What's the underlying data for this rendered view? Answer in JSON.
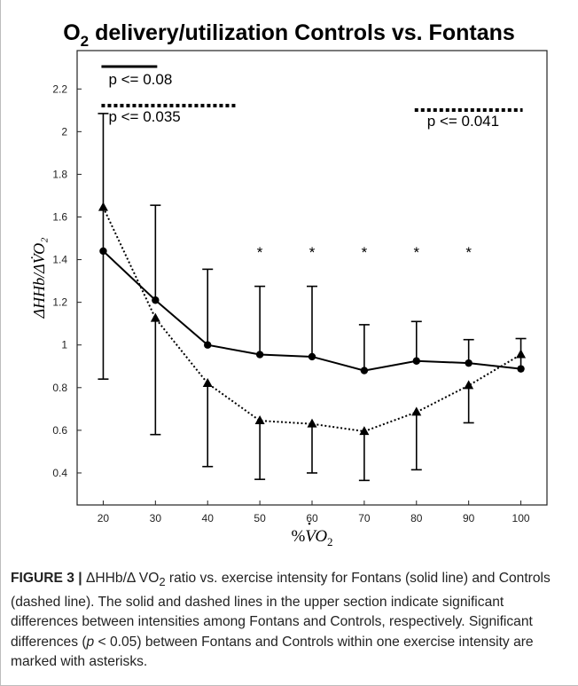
{
  "chart_data": {
    "type": "line",
    "title": {
      "prefix": "O",
      "sub": "2",
      "rest": " delivery/utilization Controls vs. Fontans"
    },
    "xlabel": {
      "prefix": "%",
      "main": "V",
      "sub": "O",
      "subsub": "2"
    },
    "ylabel": "ΔHHb/ΔV̇O₂",
    "x": [
      20,
      30,
      40,
      50,
      60,
      70,
      80,
      90,
      100
    ],
    "xlim": [
      15,
      105
    ],
    "ylim": [
      0.25,
      2.38
    ],
    "xticks": [
      "20",
      "30",
      "40",
      "50",
      "60",
      "70",
      "80",
      "90",
      "100"
    ],
    "yticks": [
      "0.4",
      "0.6",
      "0.8",
      "1",
      "1.2",
      "1.4",
      "1.6",
      "1.8",
      "2",
      "2.2"
    ],
    "series": [
      {
        "line": "solid",
        "marker": "circle",
        "values": [
          1.44,
          1.21,
          1.0,
          0.955,
          0.945,
          0.88,
          0.925,
          0.915,
          0.888
        ],
        "upper_error": [
          2.085,
          1.655,
          1.355,
          1.275,
          1.275,
          1.095,
          1.11,
          1.025,
          1.03
        ],
        "lower_error": [
          0.84,
          null,
          null,
          null,
          null,
          null,
          null,
          null,
          null
        ]
      },
      {
        "line": "dotted",
        "marker": "triangle",
        "values": [
          1.645,
          1.125,
          0.82,
          0.645,
          0.63,
          0.595,
          0.685,
          0.81,
          0.955
        ],
        "upper_error": [
          null,
          null,
          null,
          null,
          null,
          null,
          null,
          null,
          null
        ],
        "lower_error": [
          null,
          0.58,
          0.43,
          0.37,
          0.4,
          0.365,
          0.415,
          0.635,
          null
        ]
      }
    ],
    "significance_markers": {
      "symbol": "*",
      "x": [
        50,
        60,
        70,
        80,
        90
      ]
    },
    "annotations": [
      {
        "text": "p <= 0.08",
        "line": "solid",
        "x_range": [
          20,
          30
        ]
      },
      {
        "text": "p <= 0.035",
        "line": "dotted",
        "x_range": [
          20,
          45
        ]
      },
      {
        "text": "p <= 0.041",
        "line": "dotted",
        "x_range": [
          80,
          100
        ]
      }
    ]
  },
  "caption": {
    "label": "FIGURE 3 |",
    "text_1": " ΔHHb/Δ VO",
    "sub_1": "2",
    "text_2": " ratio vs. exercise intensity for Fontans (solid line) and Controls (dashed line). The solid and dashed lines in the upper section indicate significant differences between intensities among Fontans and Controls, respectively. Significant differences (",
    "italic": "p",
    "text_3": " < 0.05) between Fontans and Controls within one exercise intensity are marked with asterisks."
  }
}
